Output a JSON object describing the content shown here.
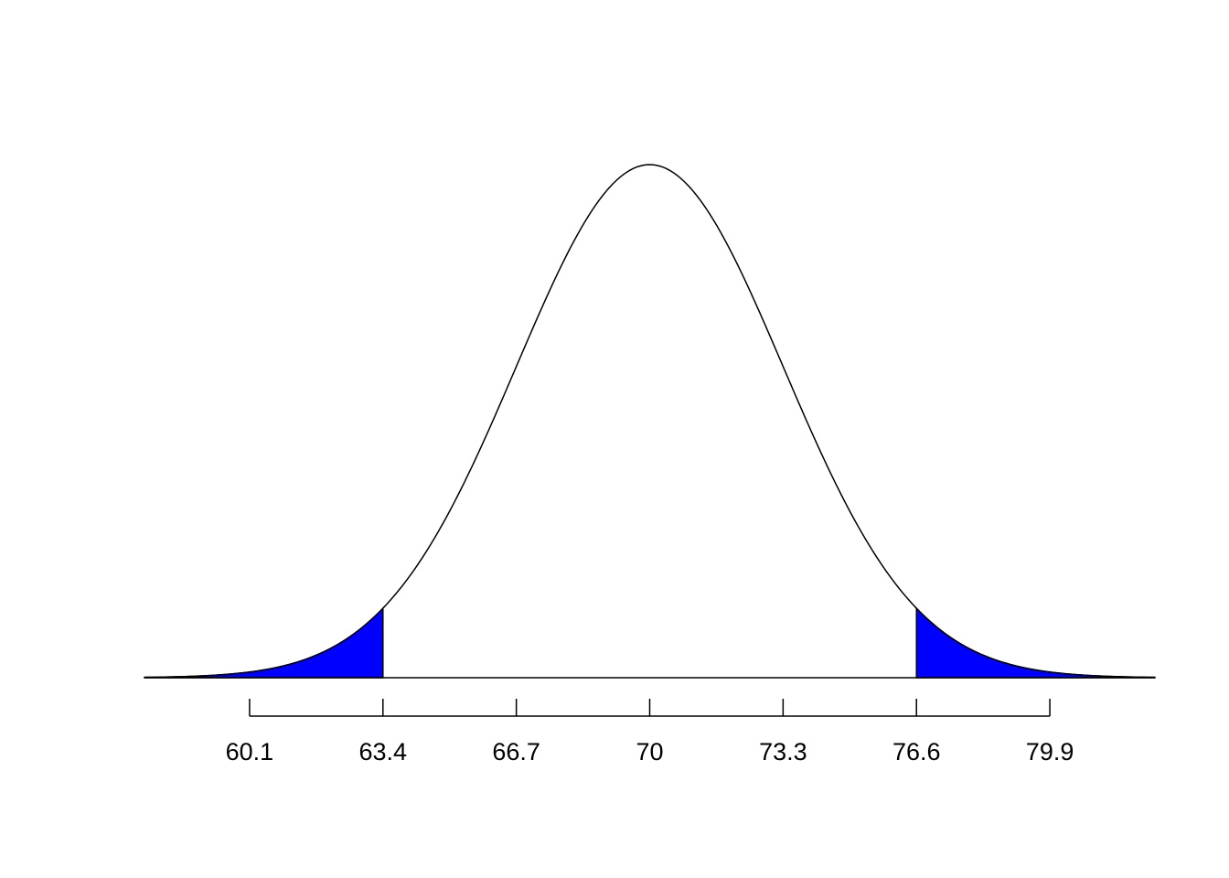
{
  "chart_data": {
    "type": "normal",
    "mean": 70,
    "sd": 3.3,
    "xlim": [
      57.5,
      82.5
    ],
    "xticks": [
      60.1,
      63.4,
      66.7,
      70,
      73.3,
      76.6,
      79.9
    ],
    "shade_below": 63.4,
    "shade_above": 76.6,
    "shade_color": "#0000ff",
    "line_color": "#000000"
  }
}
